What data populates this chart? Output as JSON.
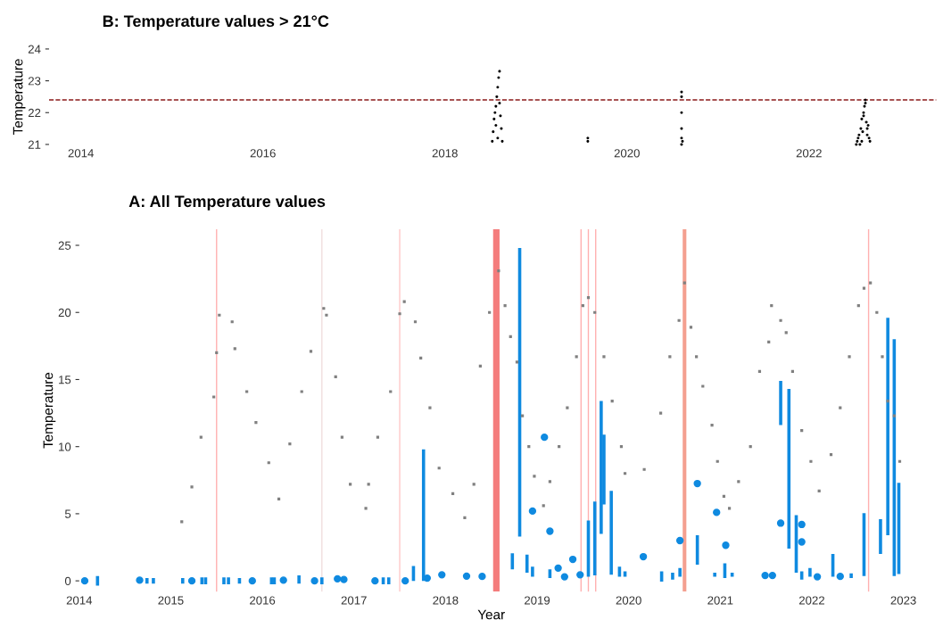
{
  "chart_data": [
    {
      "type": "scatter",
      "title": "B: Temperature values > 21°C",
      "ylabel": "Temperature",
      "xlim": [
        2013.65,
        2023.4
      ],
      "xticks": [
        2014,
        2016,
        2018,
        2020,
        2022
      ],
      "ylim": [
        21,
        24
      ],
      "yticks": [
        21,
        22,
        23,
        24
      ],
      "grid": false,
      "marker": "circle",
      "series": [
        {
          "color": "#000000",
          "x": [
            2018.52,
            2018.53,
            2018.54,
            2018.55,
            2018.56,
            2018.57,
            2018.58,
            2018.59,
            2018.6,
            2018.6,
            2018.61,
            2018.62,
            2018.63,
            2018.58,
            2018.56,
            2019.57,
            2019.57,
            2020.6,
            2020.6,
            2020.6,
            2020.6,
            2020.6,
            2020.6,
            2020.61,
            2022.52,
            2022.53,
            2022.54,
            2022.55,
            2022.56,
            2022.57,
            2022.58,
            2022.59,
            2022.6,
            2022.61,
            2022.62,
            2022.63,
            2022.64,
            2022.65,
            2022.66,
            2022.67,
            2022.6,
            2022.62,
            2022.58,
            2022.64
          ],
          "values": [
            21.1,
            21.4,
            21.8,
            22.0,
            22.2,
            22.5,
            22.8,
            23.1,
            23.3,
            22.3,
            21.9,
            21.5,
            21.1,
            21.2,
            21.6,
            21.1,
            21.2,
            21.0,
            21.2,
            21.5,
            22.0,
            22.5,
            22.65,
            21.1,
            21.0,
            21.1,
            21.2,
            21.3,
            21.0,
            21.5,
            21.8,
            21.4,
            22.0,
            22.2,
            22.4,
            21.7,
            21.3,
            21.6,
            21.2,
            21.1,
            21.9,
            22.3,
            21.1,
            21.5
          ]
        }
      ],
      "ref_lines": [
        {
          "axis": "y",
          "value": 22.4,
          "color": "#8b1a1a",
          "line_style": "dashed"
        }
      ]
    },
    {
      "type": "scatter",
      "title": "A: All Temperature values",
      "xlabel": "Year",
      "ylabel": "Temperature",
      "xlim": [
        2014,
        2023
      ],
      "xticks": [
        2014,
        2015,
        2016,
        2017,
        2018,
        2019,
        2020,
        2021,
        2022,
        2023
      ],
      "ylim": [
        -0.8,
        26.2
      ],
      "yticks": [
        0,
        5,
        10,
        15,
        20,
        25
      ],
      "grid": false,
      "series": [
        {
          "type": "scatter",
          "marker": "square",
          "color": "#808080",
          "x": [
            2015.12,
            2015.23,
            2015.33,
            2015.47,
            2015.5,
            2015.53,
            2015.67,
            2015.7,
            2015.83,
            2015.93,
            2016.07,
            2016.18,
            2016.3,
            2016.43,
            2016.53,
            2016.67,
            2016.7,
            2016.8,
            2016.87,
            2016.96,
            2017.13,
            2017.16,
            2017.26,
            2017.4,
            2017.5,
            2017.55,
            2017.67,
            2017.73,
            2017.83,
            2017.93,
            2018.08,
            2018.21,
            2018.31,
            2018.38,
            2018.48,
            2018.58,
            2018.65,
            2018.71,
            2018.78,
            2018.84,
            2018.91,
            2018.97,
            2019.07,
            2019.14,
            2019.24,
            2019.33,
            2019.43,
            2019.5,
            2019.56,
            2019.63,
            2019.73,
            2019.82,
            2019.92,
            2019.96,
            2020.17,
            2020.35,
            2020.45,
            2020.55,
            2020.61,
            2020.68,
            2020.74,
            2020.81,
            2020.91,
            2020.97,
            2021.04,
            2021.1,
            2021.2,
            2021.33,
            2021.43,
            2021.53,
            2021.56,
            2021.66,
            2021.72,
            2021.79,
            2021.89,
            2021.99,
            2022.08,
            2022.21,
            2022.31,
            2022.41,
            2022.51,
            2022.57,
            2022.64,
            2022.71,
            2022.77,
            2022.83,
            2022.9,
            2022.96
          ],
          "values": [
            4.4,
            7.0,
            10.7,
            13.7,
            17.0,
            19.8,
            19.3,
            17.3,
            14.1,
            11.8,
            8.8,
            6.1,
            10.2,
            14.1,
            17.1,
            20.3,
            19.8,
            15.2,
            10.7,
            7.2,
            5.4,
            7.2,
            10.7,
            14.1,
            19.9,
            20.8,
            19.3,
            16.6,
            12.9,
            8.4,
            6.5,
            4.7,
            7.2,
            16.0,
            20.0,
            23.1,
            20.5,
            18.2,
            16.3,
            12.3,
            10.0,
            7.8,
            5.6,
            7.4,
            10.0,
            12.9,
            16.7,
            20.5,
            21.1,
            20.0,
            16.7,
            13.4,
            10.0,
            8.0,
            8.3,
            12.5,
            16.7,
            19.4,
            22.2,
            18.9,
            16.7,
            14.5,
            11.6,
            8.9,
            6.3,
            5.4,
            7.4,
            10.0,
            15.6,
            17.8,
            20.5,
            19.4,
            18.5,
            15.6,
            11.2,
            8.9,
            6.7,
            9.4,
            12.9,
            16.7,
            20.5,
            21.8,
            22.2,
            20.0,
            16.7,
            13.4,
            12.3,
            8.9
          ]
        },
        {
          "type": "bar",
          "color": "#0f8ae0",
          "x": [
            2014.2,
            2014.74,
            2014.81,
            2015.13,
            2015.34,
            2015.38,
            2015.58,
            2015.63,
            2015.75,
            2016.1,
            2016.13,
            2016.4,
            2016.65,
            2017.32,
            2017.38,
            2017.65,
            2017.76,
            2018.73,
            2018.81,
            2018.89,
            2018.95,
            2019.14,
            2019.56,
            2019.63,
            2019.7,
            2019.73,
            2019.81,
            2019.9,
            2019.96,
            2020.36,
            2020.48,
            2020.56,
            2020.75,
            2020.94,
            2021.05,
            2021.13,
            2021.66,
            2021.75,
            2021.83,
            2021.89,
            2021.98,
            2022.23,
            2022.43,
            2022.57,
            2022.75,
            2022.83,
            2022.9,
            2022.95
          ],
          "base": [
            -0.35,
            -0.2,
            -0.2,
            -0.2,
            -0.25,
            -0.25,
            -0.25,
            -0.25,
            -0.2,
            -0.25,
            -0.25,
            -0.2,
            -0.25,
            -0.25,
            -0.25,
            0,
            0,
            0.85,
            3.3,
            0.6,
            0.3,
            0.2,
            0.3,
            0.4,
            3.5,
            5.7,
            0.45,
            0.3,
            0.3,
            -0.05,
            0.1,
            0.3,
            1.2,
            0.3,
            0.2,
            0.3,
            11.6,
            2.4,
            0.6,
            0.1,
            0.3,
            0.3,
            0.2,
            0.35,
            2.0,
            3.4,
            0.35,
            0.5
          ],
          "values": [
            0.7,
            0.4,
            0.4,
            0.4,
            0.5,
            0.5,
            0.5,
            0.5,
            0.4,
            0.5,
            0.5,
            0.6,
            0.5,
            0.5,
            0.5,
            1.1,
            9.8,
            1.2,
            21.5,
            1.35,
            0.75,
            0.65,
            4.2,
            5.5,
            9.9,
            5.2,
            6.25,
            0.75,
            0.4,
            0.75,
            0.5,
            0.65,
            2.2,
            0.3,
            1.1,
            0.3,
            3.3,
            11.9,
            4.3,
            0.6,
            0.65,
            1.7,
            0.35,
            4.7,
            2.6,
            16.2,
            17.65,
            6.8
          ]
        },
        {
          "type": "scatter",
          "marker": "circle",
          "color": "#0f8ae0",
          "x": [
            2014.06,
            2014.66,
            2015.23,
            2015.89,
            2016.23,
            2016.57,
            2016.82,
            2016.89,
            2017.23,
            2017.56,
            2017.8,
            2017.96,
            2018.23,
            2018.4,
            2018.95,
            2019.08,
            2019.14,
            2019.23,
            2019.3,
            2019.39,
            2019.47,
            2020.16,
            2020.56,
            2020.75,
            2020.96,
            2021.06,
            2021.49,
            2021.57,
            2021.66,
            2021.89,
            2021.89,
            2022.06,
            2022.31
          ],
          "values": [
            0,
            0.05,
            0,
            0,
            0.05,
            0,
            0.15,
            0.1,
            0,
            0,
            0.2,
            0.45,
            0.35,
            0.33,
            5.2,
            10.7,
            3.7,
            0.95,
            0.3,
            1.6,
            0.45,
            1.8,
            3.0,
            7.25,
            5.1,
            2.65,
            0.4,
            0.4,
            4.3,
            4.2,
            2.9,
            0.3,
            0.33
          ]
        }
      ],
      "bands": [
        {
          "axis": "x",
          "from": 2018.52,
          "to": 2018.59,
          "color": "#f47c7c"
        },
        {
          "axis": "x",
          "from": 2020.59,
          "to": 2020.63,
          "color": "#f4a090"
        }
      ],
      "ref_lines": [
        {
          "axis": "x",
          "value": 2015.5,
          "color": "#ffb0b0"
        },
        {
          "axis": "x",
          "value": 2016.65,
          "color": "#f0dede"
        },
        {
          "axis": "x",
          "value": 2017.5,
          "color": "#ffc8c8"
        },
        {
          "axis": "x",
          "value": 2019.48,
          "color": "#ffb0b0"
        },
        {
          "axis": "x",
          "value": 2019.56,
          "color": "#ffb0b0"
        },
        {
          "axis": "x",
          "value": 2019.64,
          "color": "#ffb0b0"
        },
        {
          "axis": "x",
          "value": 2022.62,
          "color": "#ffb0b0"
        }
      ]
    }
  ]
}
